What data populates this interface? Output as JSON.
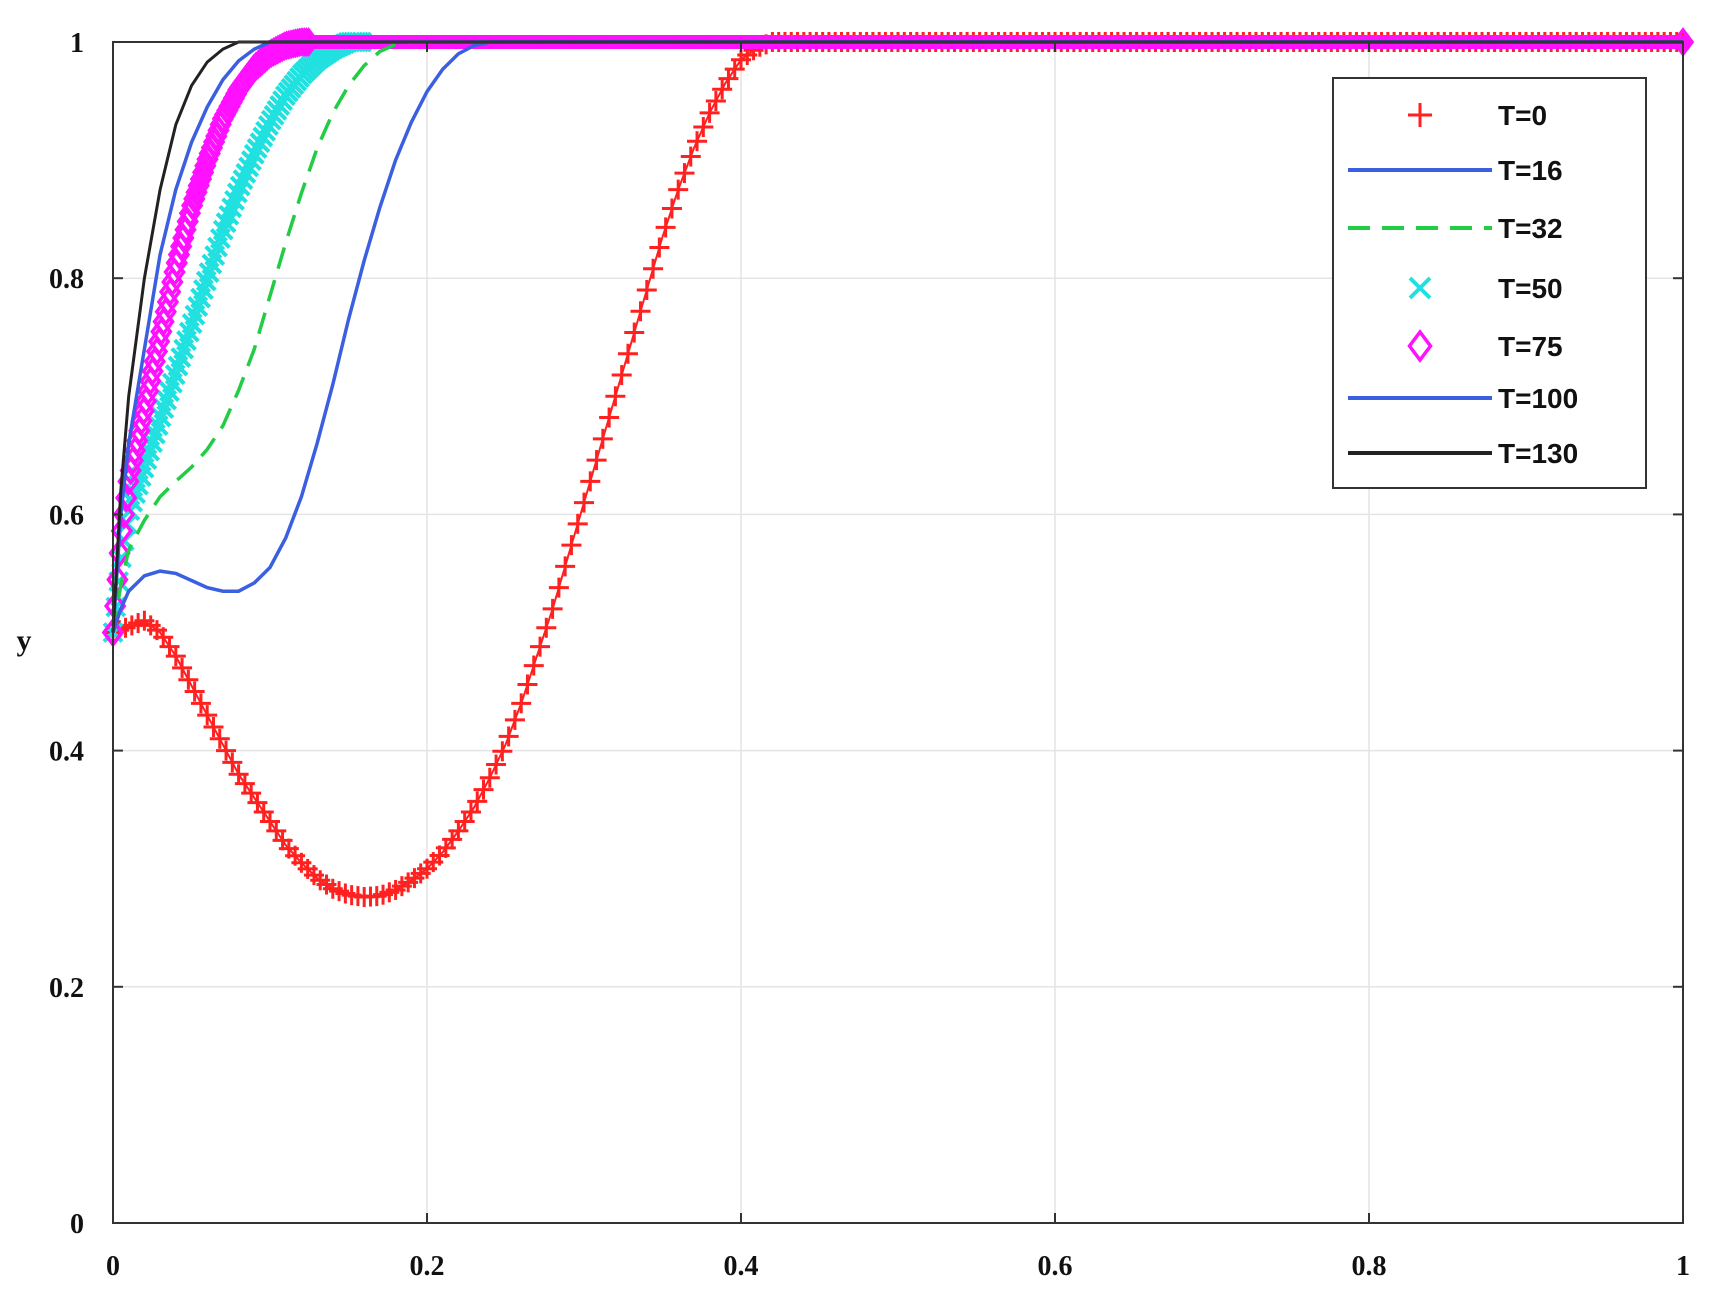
{
  "chart_data": {
    "type": "line",
    "title": "",
    "xlabel": "",
    "ylabel": "y",
    "xlim": [
      0,
      1
    ],
    "ylim": [
      0,
      1
    ],
    "x_ticks": [
      "0",
      "0.2",
      "0.4",
      "0.6",
      "0.8",
      "1"
    ],
    "y_ticks": [
      "0",
      "0.2",
      "0.4",
      "0.6",
      "0.8",
      "1"
    ],
    "grid": true,
    "legend_position": "top-right",
    "series": [
      {
        "name": "T=0",
        "color": "#ff2020",
        "style": "plus-marker",
        "points": [
          [
            0,
            0.5
          ],
          [
            0.01,
            0.505
          ],
          [
            0.02,
            0.51
          ],
          [
            0.03,
            0.5
          ],
          [
            0.04,
            0.48
          ],
          [
            0.05,
            0.455
          ],
          [
            0.06,
            0.43
          ],
          [
            0.07,
            0.405
          ],
          [
            0.08,
            0.38
          ],
          [
            0.09,
            0.36
          ],
          [
            0.1,
            0.34
          ],
          [
            0.11,
            0.32
          ],
          [
            0.12,
            0.305
          ],
          [
            0.13,
            0.292
          ],
          [
            0.14,
            0.283
          ],
          [
            0.15,
            0.278
          ],
          [
            0.16,
            0.276
          ],
          [
            0.17,
            0.277
          ],
          [
            0.18,
            0.282
          ],
          [
            0.19,
            0.29
          ],
          [
            0.2,
            0.3
          ],
          [
            0.21,
            0.314
          ],
          [
            0.22,
            0.332
          ],
          [
            0.23,
            0.352
          ],
          [
            0.24,
            0.377
          ],
          [
            0.25,
            0.405
          ],
          [
            0.26,
            0.44
          ],
          [
            0.27,
            0.48
          ],
          [
            0.28,
            0.52
          ],
          [
            0.29,
            0.565
          ],
          [
            0.3,
            0.61
          ],
          [
            0.31,
            0.655
          ],
          [
            0.32,
            0.7
          ],
          [
            0.33,
            0.745
          ],
          [
            0.34,
            0.79
          ],
          [
            0.35,
            0.835
          ],
          [
            0.36,
            0.875
          ],
          [
            0.37,
            0.91
          ],
          [
            0.38,
            0.94
          ],
          [
            0.39,
            0.965
          ],
          [
            0.4,
            0.985
          ],
          [
            0.41,
            0.995
          ],
          [
            0.42,
            1.0
          ],
          [
            0.5,
            1.0
          ],
          [
            0.6,
            1.0
          ],
          [
            0.7,
            1.0
          ],
          [
            0.8,
            1.0
          ],
          [
            0.9,
            1.0
          ],
          [
            1.0,
            1.0
          ]
        ]
      },
      {
        "name": "T=16",
        "color": "#3a5fe0",
        "style": "solid",
        "points": [
          [
            0,
            0.5
          ],
          [
            0.005,
            0.52
          ],
          [
            0.01,
            0.535
          ],
          [
            0.02,
            0.548
          ],
          [
            0.03,
            0.552
          ],
          [
            0.04,
            0.55
          ],
          [
            0.05,
            0.544
          ],
          [
            0.06,
            0.538
          ],
          [
            0.07,
            0.535
          ],
          [
            0.08,
            0.535
          ],
          [
            0.09,
            0.542
          ],
          [
            0.1,
            0.555
          ],
          [
            0.11,
            0.58
          ],
          [
            0.12,
            0.615
          ],
          [
            0.13,
            0.66
          ],
          [
            0.14,
            0.71
          ],
          [
            0.15,
            0.765
          ],
          [
            0.16,
            0.815
          ],
          [
            0.17,
            0.86
          ],
          [
            0.18,
            0.9
          ],
          [
            0.19,
            0.932
          ],
          [
            0.2,
            0.958
          ],
          [
            0.21,
            0.977
          ],
          [
            0.22,
            0.99
          ],
          [
            0.23,
            0.997
          ],
          [
            0.24,
            1.0
          ],
          [
            0.5,
            1.0
          ],
          [
            0.75,
            1.0
          ],
          [
            1.0,
            1.0
          ]
        ]
      },
      {
        "name": "T=32",
        "color": "#22cc44",
        "style": "dashed",
        "points": [
          [
            0,
            0.5
          ],
          [
            0.005,
            0.54
          ],
          [
            0.01,
            0.57
          ],
          [
            0.02,
            0.595
          ],
          [
            0.03,
            0.615
          ],
          [
            0.04,
            0.628
          ],
          [
            0.05,
            0.64
          ],
          [
            0.06,
            0.655
          ],
          [
            0.07,
            0.675
          ],
          [
            0.08,
            0.705
          ],
          [
            0.09,
            0.74
          ],
          [
            0.1,
            0.785
          ],
          [
            0.11,
            0.83
          ],
          [
            0.12,
            0.872
          ],
          [
            0.13,
            0.91
          ],
          [
            0.14,
            0.94
          ],
          [
            0.15,
            0.963
          ],
          [
            0.16,
            0.98
          ],
          [
            0.17,
            0.992
          ],
          [
            0.18,
            0.998
          ],
          [
            0.19,
            1.0
          ],
          [
            0.5,
            1.0
          ],
          [
            1.0,
            1.0
          ]
        ]
      },
      {
        "name": "T=50",
        "color": "#20e0e0",
        "style": "x-marker",
        "points": [
          [
            0,
            0.5
          ],
          [
            0.005,
            0.56
          ],
          [
            0.01,
            0.6
          ],
          [
            0.02,
            0.64
          ],
          [
            0.03,
            0.68
          ],
          [
            0.04,
            0.72
          ],
          [
            0.05,
            0.76
          ],
          [
            0.06,
            0.8
          ],
          [
            0.07,
            0.84
          ],
          [
            0.08,
            0.875
          ],
          [
            0.09,
            0.905
          ],
          [
            0.1,
            0.932
          ],
          [
            0.11,
            0.955
          ],
          [
            0.12,
            0.972
          ],
          [
            0.13,
            0.985
          ],
          [
            0.14,
            0.994
          ],
          [
            0.15,
            1.0
          ],
          [
            0.5,
            1.0
          ],
          [
            1.0,
            1.0
          ]
        ]
      },
      {
        "name": "T=75",
        "color": "#ff10ff",
        "style": "diamond-marker",
        "points": [
          [
            0,
            0.5
          ],
          [
            0.005,
            0.58
          ],
          [
            0.01,
            0.63
          ],
          [
            0.02,
            0.69
          ],
          [
            0.03,
            0.75
          ],
          [
            0.04,
            0.81
          ],
          [
            0.05,
            0.86
          ],
          [
            0.06,
            0.9
          ],
          [
            0.07,
            0.935
          ],
          [
            0.08,
            0.96
          ],
          [
            0.09,
            0.978
          ],
          [
            0.1,
            0.99
          ],
          [
            0.11,
            0.997
          ],
          [
            0.12,
            1.0
          ],
          [
            0.5,
            1.0
          ],
          [
            1.0,
            1.0
          ]
        ]
      },
      {
        "name": "T=100",
        "color": "#3a5fe0",
        "style": "solid",
        "points": [
          [
            0,
            0.5
          ],
          [
            0.005,
            0.6
          ],
          [
            0.01,
            0.66
          ],
          [
            0.02,
            0.74
          ],
          [
            0.03,
            0.82
          ],
          [
            0.04,
            0.875
          ],
          [
            0.05,
            0.915
          ],
          [
            0.06,
            0.945
          ],
          [
            0.07,
            0.968
          ],
          [
            0.08,
            0.984
          ],
          [
            0.09,
            0.994
          ],
          [
            0.1,
            1.0
          ],
          [
            0.5,
            1.0
          ],
          [
            1.0,
            1.0
          ]
        ]
      },
      {
        "name": "T=130",
        "color": "#222222",
        "style": "solid",
        "points": [
          [
            0,
            0.5
          ],
          [
            0.005,
            0.62
          ],
          [
            0.01,
            0.7
          ],
          [
            0.02,
            0.8
          ],
          [
            0.03,
            0.875
          ],
          [
            0.04,
            0.93
          ],
          [
            0.05,
            0.963
          ],
          [
            0.06,
            0.983
          ],
          [
            0.07,
            0.994
          ],
          [
            0.08,
            1.0
          ],
          [
            0.5,
            1.0
          ],
          [
            1.0,
            1.0
          ]
        ]
      }
    ]
  }
}
